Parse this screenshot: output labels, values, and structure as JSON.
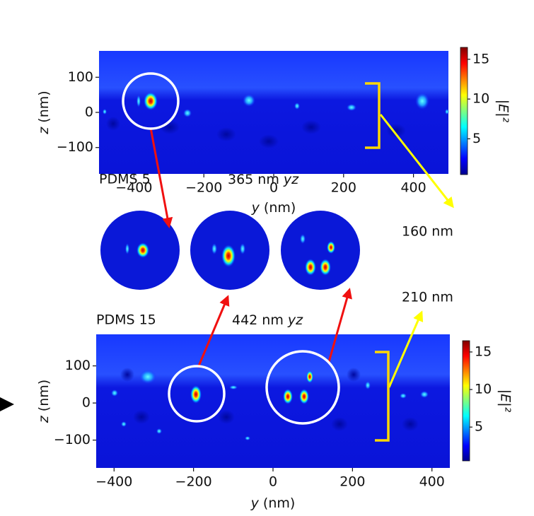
{
  "panels": [
    {
      "label": "PDMS 5",
      "wavelength": "365 nm",
      "plane": "yz",
      "xlim": [
        -500,
        500
      ],
      "xticks": [
        {
          "value": -400,
          "label": "−400"
        },
        {
          "value": -200,
          "label": "−200"
        },
        0,
        200,
        400
      ],
      "ylim": [
        -175,
        175
      ],
      "yticks": [
        {
          "value": -100,
          "label": "−100"
        },
        0,
        100
      ],
      "x_label": {
        "var": "y",
        "unit": "(nm)"
      },
      "y_label": {
        "var": "z",
        "unit": "(nm)"
      },
      "colorbar": {
        "label": "|E|²",
        "clim": [
          0.5,
          16.5
        ],
        "ticks": [
          5,
          10,
          15
        ]
      },
      "annotation": "160 nm"
    },
    {
      "label": "PDMS 15",
      "wavelength": "442 nm",
      "plane": "yz",
      "xlim": [
        -445,
        445
      ],
      "xticks": [
        {
          "value": -400,
          "label": "−400"
        },
        {
          "value": -200,
          "label": "−200"
        },
        0,
        200,
        400
      ],
      "ylim": [
        -175,
        185
      ],
      "yticks": [
        {
          "value": -100,
          "label": "−100"
        },
        0,
        100
      ],
      "x_label": {
        "var": "y",
        "unit": "(nm)"
      },
      "y_label": {
        "var": "z",
        "unit": "(nm)"
      },
      "colorbar": {
        "label": "|E|²",
        "clim": [
          0.5,
          16.5
        ],
        "ticks": [
          5,
          10,
          15
        ]
      },
      "annotation": "210 nm"
    }
  ]
}
